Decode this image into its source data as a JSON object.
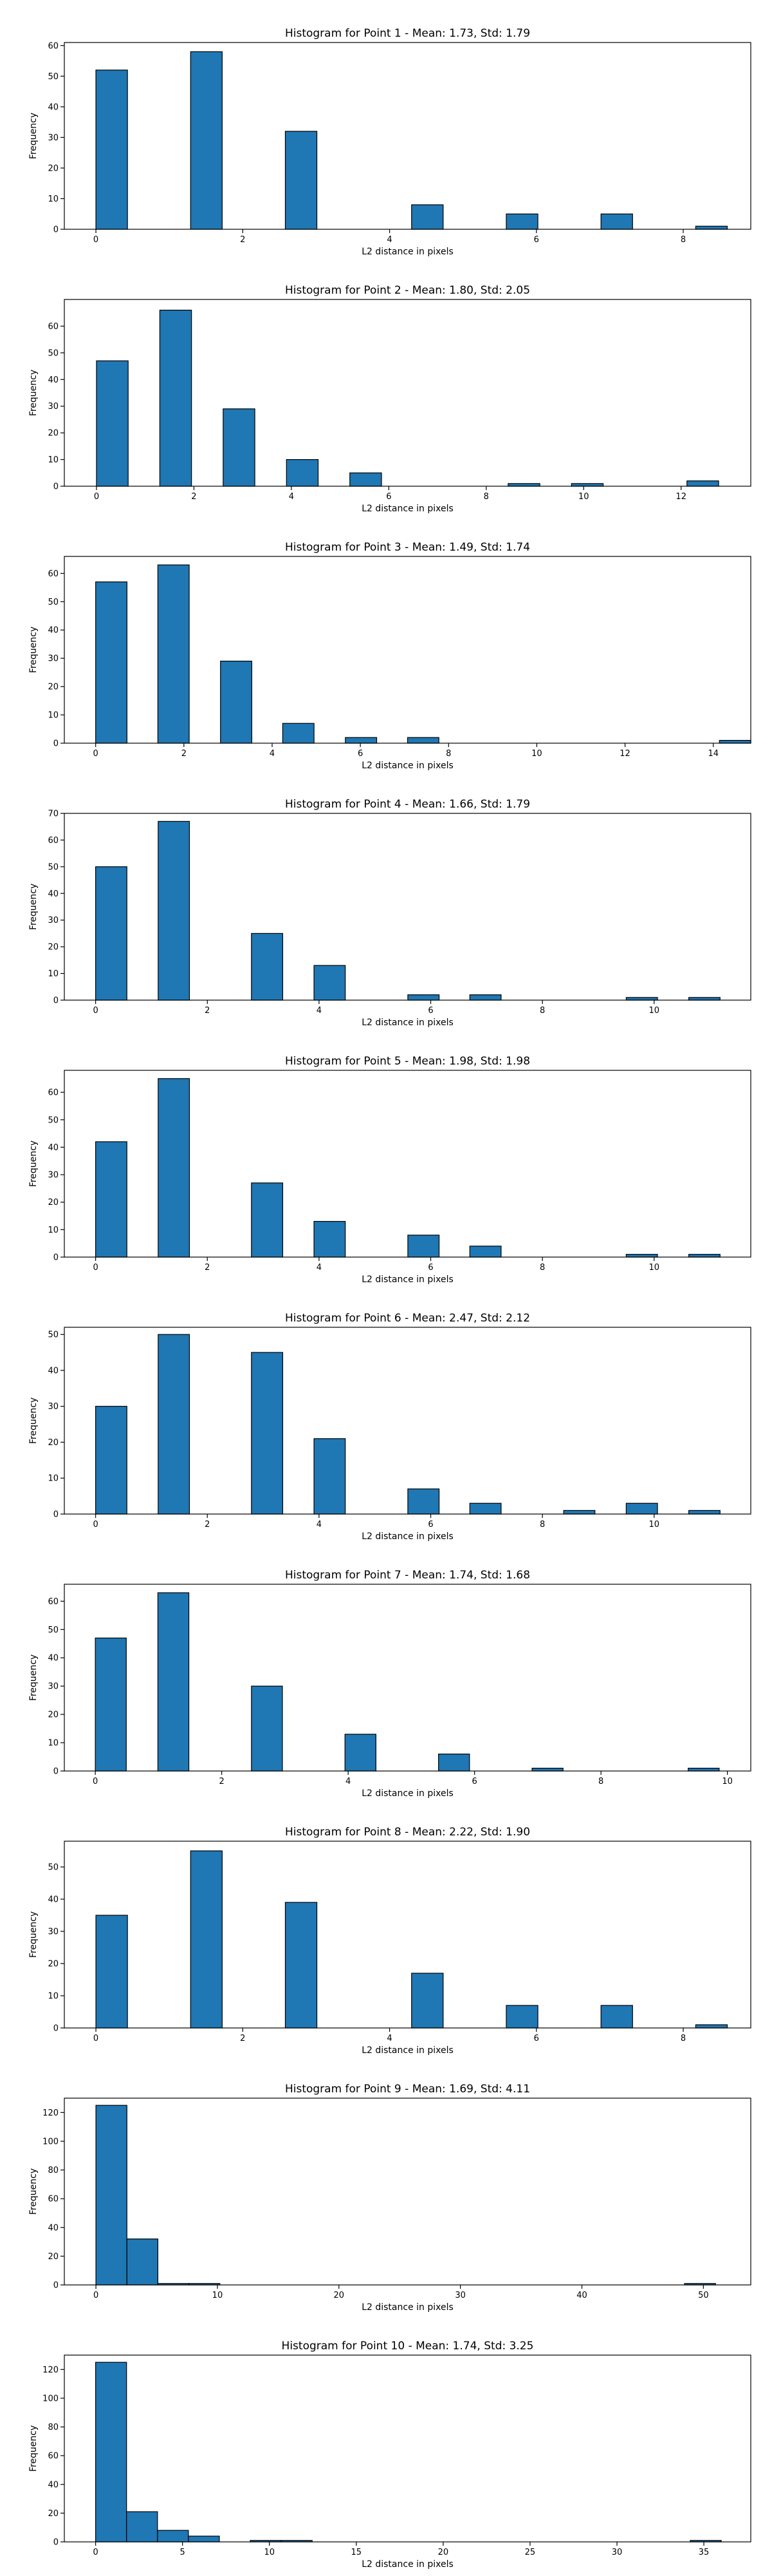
{
  "style": {
    "bar_color": "#1f77b4",
    "edge_color": "#000000",
    "background": "#ffffff"
  },
  "chart_data": [
    {
      "type": "bar",
      "title": "Histogram for Point 1 - Mean: 1.73, Std: 1.79",
      "xlabel": "L2 distance in pixels",
      "ylabel": "Frequency",
      "xlim": [
        -0.43,
        8.92
      ],
      "ylim": [
        0,
        61
      ],
      "xticks": [
        0,
        2,
        4,
        6,
        8
      ],
      "yticks": [
        0,
        10,
        20,
        30,
        40,
        50,
        60
      ],
      "bins": [
        [
          0.0,
          0.43
        ],
        [
          1.29,
          1.72
        ],
        [
          2.58,
          3.01
        ],
        [
          4.3,
          4.73
        ],
        [
          5.59,
          6.02
        ],
        [
          6.88,
          7.31
        ],
        [
          8.17,
          8.6
        ]
      ],
      "values": [
        52,
        58,
        32,
        8,
        5,
        5,
        1
      ]
    },
    {
      "type": "bar",
      "title": "Histogram for Point 2 - Mean: 1.80, Std: 2.05",
      "xlabel": "L2 distance in pixels",
      "ylabel": "Frequency",
      "xlim": [
        -0.66,
        13.43
      ],
      "ylim": [
        0,
        70
      ],
      "xticks": [
        0,
        2,
        4,
        6,
        8,
        10,
        12
      ],
      "yticks": [
        0,
        10,
        20,
        30,
        40,
        50,
        60
      ],
      "bins": [
        [
          0.0,
          0.65
        ],
        [
          1.3,
          1.95
        ],
        [
          2.6,
          3.25
        ],
        [
          3.9,
          4.55
        ],
        [
          5.2,
          5.85
        ],
        [
          8.45,
          9.1
        ],
        [
          9.75,
          10.4
        ],
        [
          12.12,
          12.77
        ]
      ],
      "values": [
        47,
        66,
        29,
        10,
        5,
        1,
        1,
        2
      ]
    },
    {
      "type": "bar",
      "title": "Histogram for Point 3 - Mean: 1.49, Std: 1.74",
      "xlabel": "L2 distance in pixels",
      "ylabel": "Frequency",
      "xlim": [
        -0.71,
        14.85
      ],
      "ylim": [
        0,
        66
      ],
      "xticks": [
        0,
        2,
        4,
        6,
        8,
        10,
        12,
        14
      ],
      "yticks": [
        0,
        10,
        20,
        30,
        40,
        50,
        60
      ],
      "bins": [
        [
          0.0,
          0.71
        ],
        [
          1.41,
          2.12
        ],
        [
          2.83,
          3.54
        ],
        [
          4.24,
          4.95
        ],
        [
          5.66,
          6.37
        ],
        [
          7.07,
          7.78
        ],
        [
          14.14,
          14.85
        ]
      ],
      "values": [
        57,
        63,
        29,
        7,
        2,
        2,
        1
      ]
    },
    {
      "type": "bar",
      "title": "Histogram for Point 4 - Mean: 1.66, Std: 1.79",
      "xlabel": "L2 distance in pixels",
      "ylabel": "Frequency",
      "xlim": [
        -0.56,
        11.73
      ],
      "ylim": [
        0,
        70
      ],
      "xticks": [
        0,
        2,
        4,
        6,
        8,
        10
      ],
      "yticks": [
        0,
        10,
        20,
        30,
        40,
        50,
        60,
        70
      ],
      "bins": [
        [
          0.0,
          0.56
        ],
        [
          1.12,
          1.68
        ],
        [
          2.79,
          3.35
        ],
        [
          3.91,
          4.47
        ],
        [
          5.59,
          6.15
        ],
        [
          6.7,
          7.26
        ],
        [
          9.5,
          10.06
        ],
        [
          10.62,
          11.18
        ]
      ],
      "values": [
        50,
        67,
        25,
        13,
        2,
        2,
        1,
        1
      ]
    },
    {
      "type": "bar",
      "title": "Histogram for Point 5 - Mean: 1.98, Std: 1.98",
      "xlabel": "L2 distance in pixels",
      "ylabel": "Frequency",
      "xlim": [
        -0.56,
        11.73
      ],
      "ylim": [
        0,
        68
      ],
      "xticks": [
        0,
        2,
        4,
        6,
        8,
        10
      ],
      "yticks": [
        0,
        10,
        20,
        30,
        40,
        50,
        60
      ],
      "bins": [
        [
          0.0,
          0.56
        ],
        [
          1.12,
          1.68
        ],
        [
          2.79,
          3.35
        ],
        [
          3.91,
          4.47
        ],
        [
          5.59,
          6.15
        ],
        [
          6.7,
          7.26
        ],
        [
          9.5,
          10.06
        ],
        [
          10.62,
          11.18
        ]
      ],
      "values": [
        42,
        65,
        27,
        13,
        8,
        4,
        1,
        1
      ]
    },
    {
      "type": "bar",
      "title": "Histogram for Point 6 - Mean: 2.47, Std: 2.12",
      "xlabel": "L2 distance in pixels",
      "ylabel": "Frequency",
      "xlim": [
        -0.56,
        11.73
      ],
      "ylim": [
        0,
        52
      ],
      "xticks": [
        0,
        2,
        4,
        6,
        8,
        10
      ],
      "yticks": [
        0,
        10,
        20,
        30,
        40,
        50
      ],
      "bins": [
        [
          0.0,
          0.56
        ],
        [
          1.12,
          1.68
        ],
        [
          2.79,
          3.35
        ],
        [
          3.91,
          4.47
        ],
        [
          5.59,
          6.15
        ],
        [
          6.7,
          7.26
        ],
        [
          8.38,
          8.94
        ],
        [
          9.5,
          10.06
        ],
        [
          10.62,
          11.18
        ]
      ],
      "values": [
        30,
        50,
        45,
        21,
        7,
        3,
        1,
        3,
        1
      ]
    },
    {
      "type": "bar",
      "title": "Histogram for Point 7 - Mean: 1.74, Std: 1.68",
      "xlabel": "L2 distance in pixels",
      "ylabel": "Frequency",
      "xlim": [
        -0.49,
        10.37
      ],
      "ylim": [
        0,
        66
      ],
      "xticks": [
        0,
        2,
        4,
        6,
        8,
        10
      ],
      "yticks": [
        0,
        10,
        20,
        30,
        40,
        50,
        60
      ],
      "bins": [
        [
          0.0,
          0.49
        ],
        [
          0.99,
          1.48
        ],
        [
          2.47,
          2.96
        ],
        [
          3.95,
          4.44
        ],
        [
          5.43,
          5.92
        ],
        [
          6.91,
          7.4
        ],
        [
          9.38,
          9.87
        ]
      ],
      "values": [
        47,
        63,
        30,
        13,
        6,
        1,
        1
      ]
    },
    {
      "type": "bar",
      "title": "Histogram for Point 8 - Mean: 2.22, Std: 1.90",
      "xlabel": "L2 distance in pixels",
      "ylabel": "Frequency",
      "xlim": [
        -0.43,
        8.92
      ],
      "ylim": [
        0,
        58
      ],
      "xticks": [
        0,
        2,
        4,
        6,
        8
      ],
      "yticks": [
        0,
        10,
        20,
        30,
        40,
        50
      ],
      "bins": [
        [
          0.0,
          0.43
        ],
        [
          1.29,
          1.72
        ],
        [
          2.58,
          3.01
        ],
        [
          4.3,
          4.73
        ],
        [
          5.59,
          6.02
        ],
        [
          6.88,
          7.31
        ],
        [
          8.17,
          8.6
        ]
      ],
      "values": [
        35,
        55,
        39,
        17,
        7,
        7,
        1
      ]
    },
    {
      "type": "bar",
      "title": "Histogram for Point 9 - Mean: 1.69, Std: 4.11",
      "xlabel": "L2 distance in pixels",
      "ylabel": "Frequency",
      "xlim": [
        -2.6,
        53.9
      ],
      "ylim": [
        0,
        130
      ],
      "xticks": [
        0,
        10,
        20,
        30,
        40,
        50
      ],
      "yticks": [
        0,
        20,
        40,
        60,
        80,
        100,
        120
      ],
      "bins": [
        [
          0.0,
          2.55
        ],
        [
          2.55,
          5.1
        ],
        [
          5.1,
          7.65
        ],
        [
          7.65,
          10.2
        ],
        [
          48.45,
          51.0
        ]
      ],
      "values": [
        125,
        32,
        1,
        1,
        1
      ]
    },
    {
      "type": "bar",
      "title": "Histogram for Point 10 - Mean: 1.74, Std: 3.25",
      "xlabel": "L2 distance in pixels",
      "ylabel": "Frequency",
      "xlim": [
        -1.8,
        37.7
      ],
      "ylim": [
        0,
        130
      ],
      "xticks": [
        0,
        5,
        10,
        15,
        20,
        25,
        30,
        35
      ],
      "yticks": [
        0,
        20,
        40,
        60,
        80,
        100,
        120
      ],
      "bins": [
        [
          0.0,
          1.78
        ],
        [
          1.78,
          3.56
        ],
        [
          3.56,
          5.34
        ],
        [
          5.34,
          7.12
        ],
        [
          8.9,
          10.68
        ],
        [
          10.68,
          12.46
        ],
        [
          34.22,
          36.0
        ]
      ],
      "values": [
        125,
        21,
        8,
        4,
        1,
        1,
        1
      ]
    }
  ]
}
